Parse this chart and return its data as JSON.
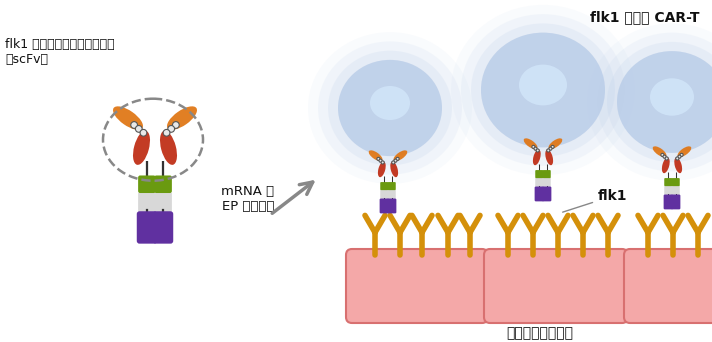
{
  "title": "flk1 特異的 CAR-T",
  "label_scfv": "flk1 を特異的に認識する部位\n（scFv）",
  "label_mrna": "mRNA を\nEP 法で導入",
  "label_flk1": "flk1",
  "label_tumor": "腫瘍血管内皮細胞",
  "bg_color": "#ffffff",
  "cell_outer_color": "#b8cce8",
  "cell_inner_color": "#d0e4f8",
  "tumor_cell_color": "#f4a8a8",
  "tumor_cell_edge": "#d87070",
  "receptor_color": "#d4900a",
  "purple_color": "#6030a0",
  "green_color": "#6a9a10",
  "orange_color": "#e07818",
  "red_color": "#c03018",
  "white_color": "#e0e0e0",
  "gray_arrow": "#888888",
  "black_line": "#222222"
}
